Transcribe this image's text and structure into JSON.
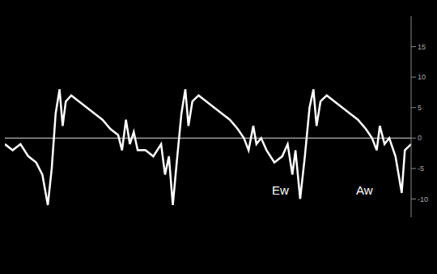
{
  "chart_data": {
    "type": "line",
    "annotations": [
      "Ew",
      "Aw"
    ],
    "tick_labels": "y",
    "grid": false,
    "color": "#ffffff",
    "xlim": [
      0,
      520
    ],
    "ylim": [
      -13,
      20
    ],
    "yticks": [
      -10,
      -5,
      0,
      5,
      10,
      15
    ],
    "x": [
      0,
      10,
      20,
      30,
      40,
      48,
      55,
      60,
      65,
      70,
      74,
      78,
      85,
      95,
      105,
      115,
      125,
      135,
      145,
      150,
      155,
      160,
      165,
      170,
      180,
      190,
      200,
      205,
      210,
      215,
      220,
      226,
      231,
      235,
      240,
      248,
      258,
      268,
      278,
      288,
      298,
      306,
      312,
      318,
      322,
      328,
      335,
      345,
      355,
      362,
      368,
      372,
      378,
      384,
      390,
      395,
      399,
      404,
      412,
      422,
      432,
      442,
      452,
      462,
      470,
      476,
      480,
      486,
      492,
      500,
      508,
      512,
      520
    ],
    "values": [
      -1,
      -2,
      -1,
      -3,
      -4,
      -6,
      -11,
      -5,
      4,
      8,
      2,
      6,
      7,
      6,
      5,
      4,
      3,
      1.5,
      0.5,
      -2,
      3,
      -1,
      1,
      -2,
      -2,
      -3,
      -1,
      -6,
      -3,
      -11,
      -4,
      4,
      8,
      2,
      6,
      7,
      6,
      5,
      4,
      3,
      1.5,
      0,
      -2,
      2,
      -1,
      0,
      -2,
      -4,
      -3,
      -1,
      -6,
      -2,
      -10,
      -3,
      5,
      8,
      2,
      6,
      7,
      6,
      5,
      4,
      3,
      1.5,
      0,
      -2,
      2,
      -1,
      0,
      -3,
      -9,
      -2,
      -1
    ]
  }
}
